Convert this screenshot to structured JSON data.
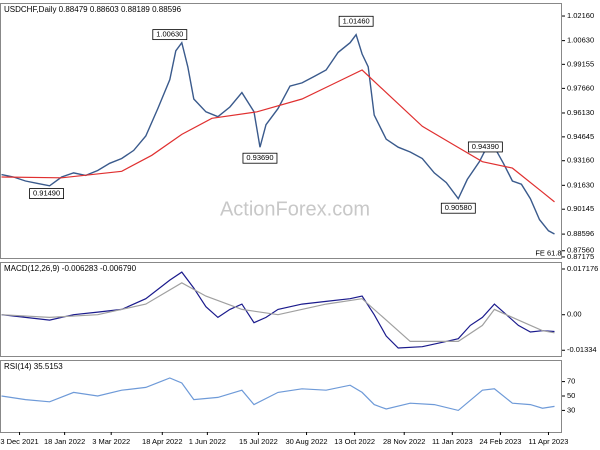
{
  "chart_data": [
    {
      "type": "line",
      "title": "USDCHF,Daily  0.88479 0.88603 0.88189 0.88596",
      "watermark": "ActionForex.com",
      "xlim": [
        -1,
        373
      ],
      "ylim": [
        0.8711,
        1.0297
      ],
      "yticks": [
        {
          "value": 1.0216,
          "label": "1.02160"
        },
        {
          "value": 1.0063,
          "label": "1.00630"
        },
        {
          "value": 0.99155,
          "label": "0.99155"
        },
        {
          "value": 0.9766,
          "label": "0.97660"
        },
        {
          "value": 0.9613,
          "label": "0.96130"
        },
        {
          "value": 0.94645,
          "label": "0.94645"
        },
        {
          "value": 0.9316,
          "label": "0.93160"
        },
        {
          "value": 0.9163,
          "label": "0.91630"
        },
        {
          "value": 0.90145,
          "label": "0.90145"
        },
        {
          "value": 0.88596,
          "label": "0.88596"
        },
        {
          "value": 0.8756,
          "label": "0.87560"
        },
        {
          "value": 0.87175,
          "label": "0.87175"
        }
      ],
      "series": [
        {
          "color": "#3a5a8c",
          "x": [
            0,
            8,
            16,
            24,
            32,
            40,
            48,
            56,
            64,
            72,
            80,
            88,
            96,
            104,
            112,
            116,
            120,
            124,
            128,
            136,
            144,
            152,
            160,
            168,
            172,
            176,
            184,
            192,
            200,
            208,
            216,
            224,
            232,
            236,
            240,
            244,
            248,
            256,
            264,
            272,
            280,
            288,
            296,
            304,
            310,
            318,
            324,
            328,
            334,
            340,
            346,
            352,
            358,
            364,
            368
          ],
          "values": [
            0.923,
            0.9215,
            0.919,
            0.9175,
            0.916,
            0.9215,
            0.924,
            0.9225,
            0.9255,
            0.93,
            0.933,
            0.938,
            0.947,
            0.964,
            0.982,
            1.0,
            1.005,
            0.99,
            0.97,
            0.962,
            0.959,
            0.965,
            0.974,
            0.962,
            0.94,
            0.954,
            0.964,
            0.978,
            0.98,
            0.984,
            0.988,
            0.999,
            1.005,
            1.01,
            0.998,
            0.99,
            0.96,
            0.945,
            0.94,
            0.937,
            0.933,
            0.924,
            0.918,
            0.908,
            0.92,
            0.931,
            0.942,
            0.94,
            0.93,
            0.919,
            0.917,
            0.908,
            0.895,
            0.888,
            0.886
          ]
        },
        {
          "color": "#e03030",
          "x": [
            0,
            40,
            80,
            100,
            120,
            140,
            170,
            200,
            220,
            240,
            256,
            280,
            300,
            320,
            340,
            360,
            368
          ],
          "values": [
            0.9215,
            0.921,
            0.925,
            0.935,
            0.948,
            0.958,
            0.962,
            0.97,
            0.979,
            0.988,
            0.974,
            0.953,
            0.942,
            0.931,
            0.927,
            0.912,
            0.906
          ]
        }
      ],
      "annotations": [
        {
          "text": "1.00630",
          "x": 112,
          "y": 1.0063
        },
        {
          "text": "0.93690",
          "x": 172,
          "y": 0.9369
        },
        {
          "text": "1.01460",
          "x": 236,
          "y": 1.0146
        },
        {
          "text": "0.94390",
          "x": 322,
          "y": 0.9439
        },
        {
          "text": "0.90580",
          "x": 304,
          "y": 0.9058
        },
        {
          "text": "0.91490",
          "x": 30,
          "y": 0.9149
        },
        {
          "text": "FE 61.8",
          "x": 364,
          "y": 0.8775
        }
      ]
    },
    {
      "type": "line",
      "title": "MACD(12,26,9) -0.006283 -0.006790",
      "xlim": [
        -1,
        373
      ],
      "ylim": [
        -0.0155,
        0.0198
      ],
      "yticks": [
        0.017176,
        {
          "value": 0,
          "label": "0.00"
        },
        -0.01334
      ],
      "series": [
        {
          "color": "#1a1a8c",
          "x": [
            0,
            16,
            32,
            48,
            64,
            80,
            96,
            112,
            120,
            128,
            136,
            144,
            152,
            160,
            168,
            176,
            184,
            200,
            216,
            232,
            240,
            248,
            256,
            264,
            280,
            296,
            304,
            312,
            320,
            328,
            336,
            344,
            352,
            360,
            368
          ],
          "values": [
            0,
            -0.001,
            -0.002,
            0,
            0.001,
            0.002,
            0.006,
            0.013,
            0.016,
            0.01,
            0.003,
            -0.001,
            0.002,
            0.004,
            -0.003,
            -0.001,
            0.002,
            0.004,
            0.005,
            0.006,
            0.007,
            0,
            -0.008,
            -0.0125,
            -0.012,
            -0.01,
            -0.009,
            -0.004,
            -0.001,
            0.004,
            0,
            -0.004,
            -0.0065,
            -0.006,
            -0.0063
          ]
        },
        {
          "color": "#a0a0a0",
          "x": [
            0,
            32,
            64,
            96,
            120,
            136,
            160,
            184,
            216,
            240,
            256,
            272,
            304,
            320,
            328,
            344,
            360,
            368
          ],
          "values": [
            0,
            -0.001,
            0,
            0.004,
            0.012,
            0.007,
            0.002,
            0,
            0.004,
            0.006,
            -0.002,
            -0.01,
            -0.01,
            -0.004,
            0.002,
            -0.002,
            -0.006,
            -0.0068
          ]
        }
      ]
    },
    {
      "type": "line",
      "title": "RSI(14) 35.5153",
      "xlim": [
        -1,
        373
      ],
      "ylim": [
        0,
        100
      ],
      "yticks": [
        70,
        50,
        30
      ],
      "xticks": [
        {
          "value": 12,
          "label": "3 Dec 2021"
        },
        {
          "value": 42,
          "label": "18 Jan 2022"
        },
        {
          "value": 73,
          "label": "3 Mar 2022"
        },
        {
          "value": 107,
          "label": "18 Apr 2022"
        },
        {
          "value": 137,
          "label": "1 Jun 2022"
        },
        {
          "value": 171,
          "label": "15 Jul 2022"
        },
        {
          "value": 203,
          "label": "30 Aug 2022"
        },
        {
          "value": 235,
          "label": "13 Oct 2022"
        },
        {
          "value": 268,
          "label": "28 Nov 2022"
        },
        {
          "value": 300,
          "label": "11 Jan 2023"
        },
        {
          "value": 332,
          "label": "24 Feb 2023"
        },
        {
          "value": 364,
          "label": "11 Apr 2023"
        }
      ],
      "series": [
        {
          "color": "#6e9ad8",
          "x": [
            0,
            16,
            32,
            48,
            64,
            80,
            96,
            112,
            120,
            128,
            144,
            160,
            168,
            184,
            200,
            216,
            232,
            240,
            248,
            256,
            272,
            288,
            304,
            320,
            328,
            340,
            352,
            360,
            368
          ],
          "values": [
            50,
            45,
            42,
            55,
            50,
            58,
            62,
            75,
            68,
            45,
            48,
            58,
            38,
            55,
            60,
            58,
            65,
            55,
            38,
            32,
            40,
            38,
            30,
            58,
            60,
            40,
            38,
            33,
            35.5
          ]
        }
      ]
    }
  ]
}
